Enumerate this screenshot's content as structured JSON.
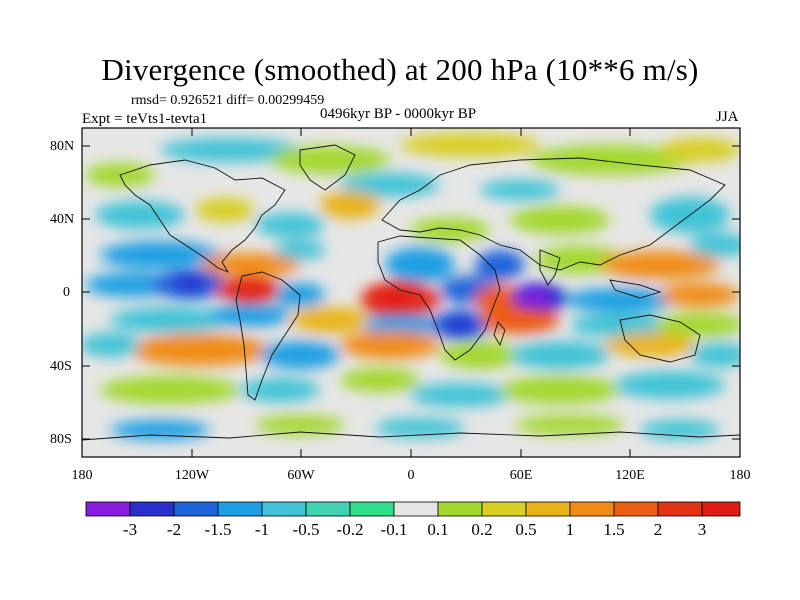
{
  "title": "Divergence (smoothed) at 200 hPa (10**6 m/s)",
  "stats_line": "rmsd= 0.926521 diff= 0.00299459",
  "experiment": "Expt = teVts1-tevta1",
  "period": "0496kyr BP - 0000kyr BP",
  "season": "JJA",
  "axes": {
    "x_ticks": [
      "180",
      "120W",
      "60W",
      "0",
      "60E",
      "120E",
      "180"
    ],
    "y_ticks": [
      "80N",
      "40N",
      "0",
      "40S",
      "80S"
    ]
  },
  "colorbar": {
    "labels": [
      "-3",
      "-2",
      "-1.5",
      "-1",
      "-0.5",
      "-0.2",
      "-0.1",
      "0.1",
      "0.2",
      "0.5",
      "1",
      "1.5",
      "2",
      "3"
    ],
    "colors": [
      "#8a1be0",
      "#2b2ecf",
      "#1d63db",
      "#1f9fe3",
      "#3fc3d6",
      "#3fd3b0",
      "#2fdc88",
      "#e6e6e6",
      "#a3d82d",
      "#d8cf20",
      "#e9b416",
      "#f08c12",
      "#ec5c12",
      "#e33214",
      "#e11b14"
    ]
  },
  "map_colors": {
    "neutral": "#e6e6e6",
    "ocean_land_lines": "#111111"
  }
}
